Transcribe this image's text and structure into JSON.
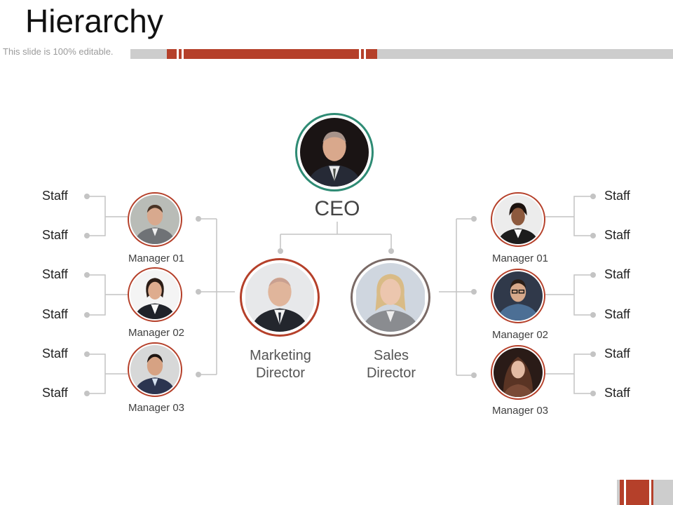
{
  "slide": {
    "title": "Hierarchy",
    "subtitle": "This slide is 100% editable."
  },
  "colors": {
    "accent_red": "#b5402a",
    "ceo_ring": "#2e8b74",
    "sales_ring": "#7a6a66",
    "manager_ring": "#b5402a",
    "connector": "#c4c4c4"
  },
  "ceo": {
    "label": "CEO",
    "photo": "ceo-portrait"
  },
  "directors": [
    {
      "line1": "Marketing",
      "line2": "Director",
      "photo": "marketing-director-portrait"
    },
    {
      "line1": "Sales",
      "line2": "Director",
      "photo": "sales-director-portrait"
    }
  ],
  "left_managers": [
    {
      "label": "Manager 01",
      "staff": [
        "Staff",
        "Staff"
      ]
    },
    {
      "label": "Manager 02",
      "staff": [
        "Staff",
        "Staff"
      ]
    },
    {
      "label": "Manager 03",
      "staff": [
        "Staff",
        "Staff"
      ]
    }
  ],
  "right_managers": [
    {
      "label": "Manager 01",
      "staff": [
        "Staff",
        "Staff"
      ]
    },
    {
      "label": "Manager 02",
      "staff": [
        "Staff",
        "Staff"
      ]
    },
    {
      "label": "Manager 03",
      "staff": [
        "Staff",
        "Staff"
      ]
    }
  ]
}
